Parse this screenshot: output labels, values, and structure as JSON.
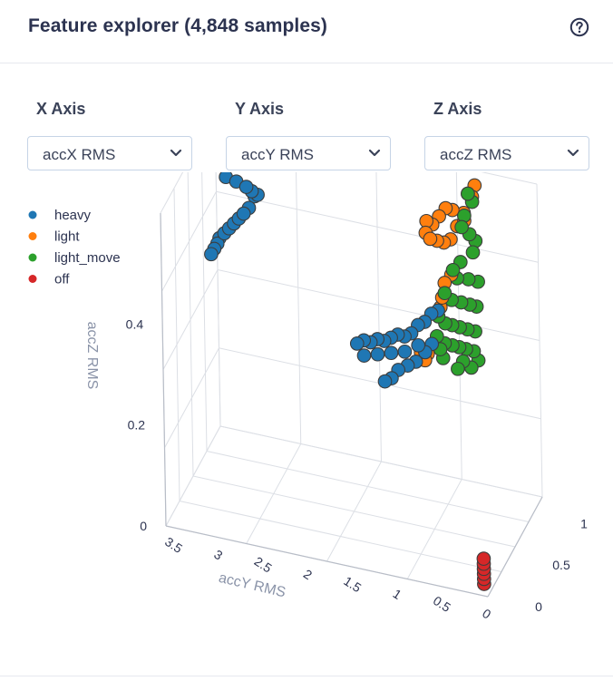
{
  "header": {
    "title": "Feature explorer (4,848 samples)",
    "help_icon": "question-circle-icon"
  },
  "controls": {
    "x_axis": {
      "label": "X Axis",
      "selected": "accX RMS"
    },
    "y_axis": {
      "label": "Y Axis",
      "selected": "accY RMS"
    },
    "z_axis": {
      "label": "Z Axis",
      "selected": "accZ RMS"
    }
  },
  "chart_data": {
    "type": "scatter",
    "dimensions": 3,
    "title": "",
    "xlabel": "",
    "ylabel": "accY RMS",
    "zlabel": "accZ RMS",
    "x_ticks": [
      "0",
      "0.5",
      "1"
    ],
    "y_ticks": [
      "0",
      "0.5",
      "1",
      "1.5",
      "2",
      "2.5",
      "3",
      "3.5"
    ],
    "z_ticks": [
      "0",
      "0.2",
      "0.4"
    ],
    "xlim": [
      0,
      1.2
    ],
    "ylim": [
      0,
      3.6
    ],
    "zlim": [
      0,
      0.62
    ],
    "grid": true,
    "legend_position": "top-left",
    "series": [
      {
        "name": "heavy",
        "color": "#1f77b4",
        "points": [
          [
            0.65,
            3.2,
            0.6
          ],
          [
            0.68,
            3.1,
            0.59
          ],
          [
            0.7,
            3.0,
            0.58
          ],
          [
            0.72,
            2.95,
            0.57
          ],
          [
            0.75,
            2.9,
            0.56
          ],
          [
            0.78,
            2.95,
            0.55
          ],
          [
            0.75,
            3.0,
            0.53
          ],
          [
            0.73,
            3.05,
            0.52
          ],
          [
            0.72,
            3.1,
            0.51
          ],
          [
            0.71,
            3.15,
            0.5
          ],
          [
            0.7,
            3.2,
            0.49
          ],
          [
            0.69,
            3.25,
            0.48
          ],
          [
            0.68,
            3.3,
            0.47
          ],
          [
            0.67,
            3.32,
            0.46
          ],
          [
            0.66,
            3.35,
            0.45
          ],
          [
            0.65,
            3.38,
            0.44
          ],
          [
            0.25,
            1.55,
            0.4
          ],
          [
            0.3,
            1.5,
            0.4
          ],
          [
            0.35,
            1.45,
            0.39
          ],
          [
            0.4,
            1.4,
            0.39
          ],
          [
            0.45,
            1.35,
            0.38
          ],
          [
            0.5,
            1.3,
            0.38
          ],
          [
            0.55,
            1.25,
            0.38
          ],
          [
            0.6,
            1.2,
            0.37
          ],
          [
            0.65,
            1.15,
            0.37
          ],
          [
            0.7,
            1.1,
            0.38
          ],
          [
            0.75,
            1.05,
            0.38
          ],
          [
            0.8,
            1.0,
            0.39
          ],
          [
            0.85,
            0.95,
            0.39
          ],
          [
            0.3,
            1.5,
            0.37
          ],
          [
            0.4,
            1.4,
            0.36
          ],
          [
            0.5,
            1.3,
            0.35
          ],
          [
            0.6,
            1.2,
            0.34
          ],
          [
            0.7,
            1.1,
            0.34
          ],
          [
            0.55,
            1.25,
            0.31
          ],
          [
            0.62,
            1.18,
            0.31
          ],
          [
            0.68,
            1.12,
            0.31
          ],
          [
            0.75,
            1.05,
            0.32
          ],
          [
            0.8,
            1.0,
            0.33
          ],
          [
            0.45,
            1.35,
            0.3
          ],
          [
            0.5,
            1.3,
            0.3
          ]
        ]
      },
      {
        "name": "light",
        "color": "#ff7f0e",
        "points": [
          [
            1.05,
            0.9,
            0.5
          ],
          [
            1.1,
            0.85,
            0.52
          ],
          [
            1.15,
            0.8,
            0.54
          ],
          [
            1.1,
            0.9,
            0.55
          ],
          [
            1.05,
            0.95,
            0.56
          ],
          [
            1.0,
            1.0,
            0.55
          ],
          [
            0.95,
            1.05,
            0.54
          ],
          [
            0.9,
            1.1,
            0.53
          ],
          [
            0.9,
            1.05,
            0.52
          ],
          [
            0.95,
            1.0,
            0.51
          ],
          [
            1.0,
            0.95,
            0.5
          ],
          [
            1.15,
            0.75,
            0.58
          ],
          [
            1.2,
            0.7,
            0.59
          ],
          [
            1.18,
            0.72,
            0.57
          ],
          [
            1.12,
            0.78,
            0.53
          ],
          [
            0.92,
            1.1,
            0.55
          ],
          [
            1.0,
            0.95,
            0.42
          ],
          [
            1.05,
            0.9,
            0.43
          ],
          [
            1.0,
            0.98,
            0.39
          ],
          [
            1.0,
            1.0,
            0.37
          ],
          [
            0.85,
            1.15,
            0.3
          ],
          [
            0.9,
            1.1,
            0.29
          ],
          [
            0.88,
            1.12,
            0.28
          ]
        ]
      },
      {
        "name": "light_move",
        "color": "#2ca02c",
        "points": [
          [
            1.15,
            0.75,
            0.58
          ],
          [
            1.18,
            0.72,
            0.56
          ],
          [
            1.12,
            0.78,
            0.54
          ],
          [
            1.1,
            0.8,
            0.52
          ],
          [
            1.15,
            0.74,
            0.5
          ],
          [
            1.2,
            0.7,
            0.48
          ],
          [
            1.18,
            0.72,
            0.46
          ],
          [
            1.1,
            0.82,
            0.45
          ],
          [
            1.05,
            0.88,
            0.44
          ],
          [
            1.08,
            0.85,
            0.42
          ],
          [
            1.15,
            0.76,
            0.41
          ],
          [
            1.2,
            0.68,
            0.4
          ],
          [
            1.0,
            0.95,
            0.4
          ],
          [
            1.05,
            0.9,
            0.38
          ],
          [
            1.1,
            0.82,
            0.37
          ],
          [
            1.15,
            0.75,
            0.36
          ],
          [
            1.2,
            0.7,
            0.35
          ],
          [
            0.95,
            1.0,
            0.36
          ],
          [
            1.0,
            0.95,
            0.34
          ],
          [
            1.05,
            0.9,
            0.33
          ],
          [
            1.1,
            0.84,
            0.32
          ],
          [
            1.15,
            0.78,
            0.31
          ],
          [
            1.2,
            0.72,
            0.3
          ],
          [
            0.95,
            1.02,
            0.32
          ],
          [
            1.0,
            0.96,
            0.3
          ],
          [
            1.05,
            0.9,
            0.29
          ],
          [
            1.1,
            0.85,
            0.28
          ],
          [
            1.15,
            0.8,
            0.27
          ],
          [
            1.2,
            0.74,
            0.26
          ],
          [
            1.12,
            0.82,
            0.25
          ],
          [
            1.08,
            0.86,
            0.24
          ],
          [
            1.18,
            0.76,
            0.23
          ],
          [
            1.22,
            0.7,
            0.24
          ],
          [
            1.0,
            0.98,
            0.27
          ],
          [
            0.98,
            1.0,
            0.29
          ]
        ]
      },
      {
        "name": "off",
        "color": "#d62728",
        "points": [
          [
            0.02,
            0.05,
            0.02
          ],
          [
            0.02,
            0.05,
            0.03
          ],
          [
            0.02,
            0.05,
            0.04
          ],
          [
            0.02,
            0.05,
            0.05
          ],
          [
            0.02,
            0.05,
            0.06
          ],
          [
            0.02,
            0.05,
            0.07
          ]
        ]
      }
    ]
  }
}
